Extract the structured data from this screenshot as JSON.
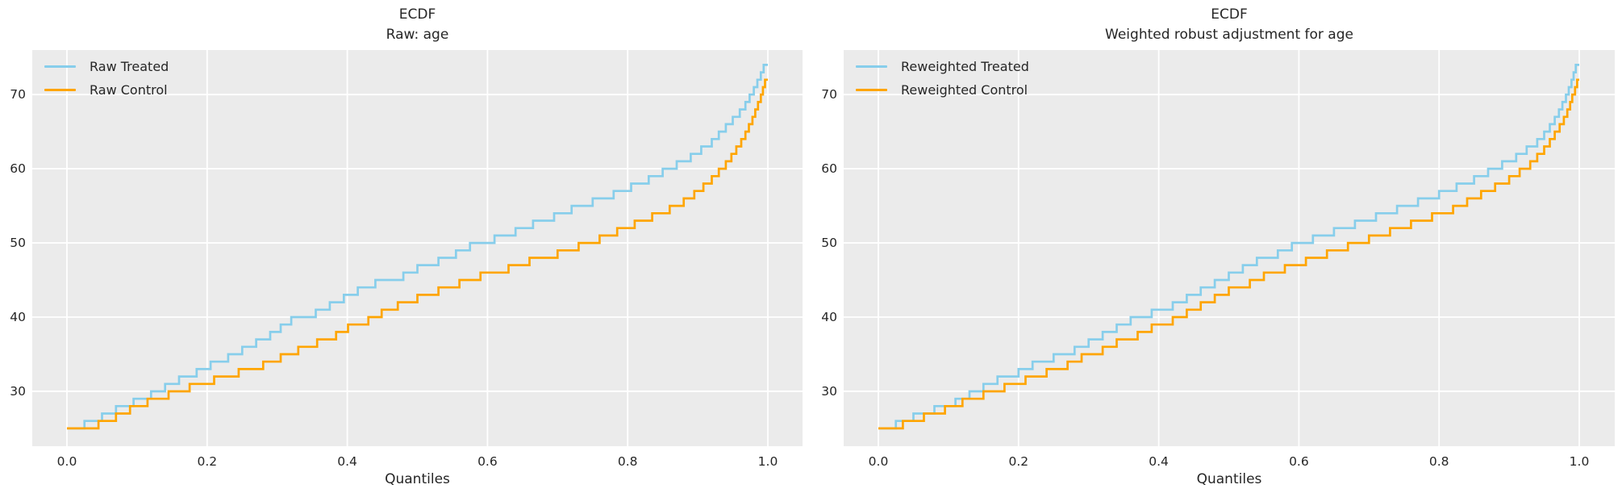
{
  "colors": {
    "figure_background": "#ffffff",
    "axes_background": "#ebebeb",
    "grid": "#ffffff",
    "text": "#262626",
    "treated_line": "#87ceeb",
    "control_line": "#ffa500"
  },
  "chart_data": [
    {
      "type": "line",
      "subtype": "ecdf-quantile-step",
      "title": "ECDF",
      "subtitle": "Raw: age",
      "xlabel": "Quantiles",
      "ylabel": "",
      "xlim": [
        -0.05,
        1.05
      ],
      "ylim": [
        22.6,
        76.0
      ],
      "grid": true,
      "legend_position": "upper left",
      "x_ticks": [
        {
          "label": "0.0",
          "value": 0.0
        },
        {
          "label": "0.2",
          "value": 0.2
        },
        {
          "label": "0.4",
          "value": 0.4
        },
        {
          "label": "0.6",
          "value": 0.6
        },
        {
          "label": "0.8",
          "value": 0.8
        },
        {
          "label": "1.0",
          "value": 1.0
        }
      ],
      "y_ticks": [
        {
          "label": "30",
          "value": 30
        },
        {
          "label": "40",
          "value": 40
        },
        {
          "label": "50",
          "value": 50
        },
        {
          "label": "60",
          "value": 60
        },
        {
          "label": "70",
          "value": 70
        }
      ],
      "series": [
        {
          "name": "Raw Treated",
          "color": "#87ceeb",
          "points": [
            [
              0,
              25
            ],
            [
              0.025,
              26
            ],
            [
              0.05,
              27
            ],
            [
              0.07,
              28
            ],
            [
              0.095,
              29
            ],
            [
              0.12,
              30
            ],
            [
              0.14,
              31
            ],
            [
              0.16,
              32
            ],
            [
              0.185,
              33
            ],
            [
              0.205,
              34
            ],
            [
              0.23,
              35
            ],
            [
              0.25,
              36
            ],
            [
              0.27,
              37
            ],
            [
              0.29,
              38
            ],
            [
              0.305,
              39
            ],
            [
              0.32,
              40
            ],
            [
              0.355,
              41
            ],
            [
              0.375,
              42
            ],
            [
              0.395,
              43
            ],
            [
              0.415,
              44
            ],
            [
              0.44,
              45
            ],
            [
              0.48,
              46
            ],
            [
              0.5,
              47
            ],
            [
              0.53,
              48
            ],
            [
              0.555,
              49
            ],
            [
              0.575,
              50
            ],
            [
              0.61,
              51
            ],
            [
              0.64,
              52
            ],
            [
              0.665,
              53
            ],
            [
              0.695,
              54
            ],
            [
              0.72,
              55
            ],
            [
              0.75,
              56
            ],
            [
              0.78,
              57
            ],
            [
              0.805,
              58
            ],
            [
              0.83,
              59
            ],
            [
              0.85,
              60
            ],
            [
              0.87,
              61
            ],
            [
              0.89,
              62
            ],
            [
              0.905,
              63
            ],
            [
              0.92,
              64
            ],
            [
              0.93,
              65
            ],
            [
              0.94,
              66
            ],
            [
              0.95,
              67
            ],
            [
              0.96,
              68
            ],
            [
              0.968,
              69
            ],
            [
              0.974,
              70
            ],
            [
              0.98,
              71
            ],
            [
              0.985,
              72
            ],
            [
              0.99,
              73
            ],
            [
              0.994,
              74
            ]
          ]
        },
        {
          "name": "Raw Control",
          "color": "#ffa500",
          "points": [
            [
              0,
              25
            ],
            [
              0.045,
              26
            ],
            [
              0.07,
              27
            ],
            [
              0.09,
              28
            ],
            [
              0.115,
              29
            ],
            [
              0.145,
              30
            ],
            [
              0.175,
              31
            ],
            [
              0.21,
              32
            ],
            [
              0.245,
              33
            ],
            [
              0.28,
              34
            ],
            [
              0.305,
              35
            ],
            [
              0.33,
              36
            ],
            [
              0.357,
              37
            ],
            [
              0.384,
              38
            ],
            [
              0.401,
              39
            ],
            [
              0.43,
              40
            ],
            [
              0.449,
              41
            ],
            [
              0.472,
              42
            ],
            [
              0.5,
              43
            ],
            [
              0.53,
              44
            ],
            [
              0.56,
              45
            ],
            [
              0.59,
              46
            ],
            [
              0.63,
              47
            ],
            [
              0.66,
              48
            ],
            [
              0.7,
              49
            ],
            [
              0.73,
              50
            ],
            [
              0.76,
              51
            ],
            [
              0.785,
              52
            ],
            [
              0.81,
              53
            ],
            [
              0.835,
              54
            ],
            [
              0.86,
              55
            ],
            [
              0.88,
              56
            ],
            [
              0.895,
              57
            ],
            [
              0.908,
              58
            ],
            [
              0.92,
              59
            ],
            [
              0.93,
              60
            ],
            [
              0.94,
              61
            ],
            [
              0.948,
              62
            ],
            [
              0.955,
              63
            ],
            [
              0.962,
              64
            ],
            [
              0.968,
              65
            ],
            [
              0.973,
              66
            ],
            [
              0.978,
              67
            ],
            [
              0.982,
              68
            ],
            [
              0.986,
              69
            ],
            [
              0.99,
              70
            ],
            [
              0.993,
              71
            ],
            [
              0.996,
              72
            ]
          ]
        }
      ]
    },
    {
      "type": "line",
      "subtype": "ecdf-quantile-step",
      "title": "ECDF",
      "subtitle": "Weighted robust adjustment for age",
      "xlabel": "Quantiles",
      "ylabel": "",
      "xlim": [
        -0.05,
        1.05
      ],
      "ylim": [
        22.6,
        76.0
      ],
      "grid": true,
      "legend_position": "upper left",
      "x_ticks": [
        {
          "label": "0.0",
          "value": 0.0
        },
        {
          "label": "0.2",
          "value": 0.2
        },
        {
          "label": "0.4",
          "value": 0.4
        },
        {
          "label": "0.6",
          "value": 0.6
        },
        {
          "label": "0.8",
          "value": 0.8
        },
        {
          "label": "1.0",
          "value": 1.0
        }
      ],
      "y_ticks": [
        {
          "label": "30",
          "value": 30
        },
        {
          "label": "40",
          "value": 40
        },
        {
          "label": "50",
          "value": 50
        },
        {
          "label": "60",
          "value": 60
        },
        {
          "label": "70",
          "value": 70
        }
      ],
      "series": [
        {
          "name": "Reweighted Treated",
          "color": "#87ceeb",
          "points": [
            [
              0,
              25
            ],
            [
              0.025,
              26
            ],
            [
              0.05,
              27
            ],
            [
              0.08,
              28
            ],
            [
              0.11,
              29
            ],
            [
              0.13,
              30
            ],
            [
              0.15,
              31
            ],
            [
              0.17,
              32
            ],
            [
              0.2,
              33
            ],
            [
              0.22,
              34
            ],
            [
              0.25,
              35
            ],
            [
              0.28,
              36
            ],
            [
              0.3,
              37
            ],
            [
              0.32,
              38
            ],
            [
              0.34,
              39
            ],
            [
              0.36,
              40
            ],
            [
              0.39,
              41
            ],
            [
              0.42,
              42
            ],
            [
              0.44,
              43
            ],
            [
              0.46,
              44
            ],
            [
              0.48,
              45
            ],
            [
              0.5,
              46
            ],
            [
              0.52,
              47
            ],
            [
              0.54,
              48
            ],
            [
              0.57,
              49
            ],
            [
              0.59,
              50
            ],
            [
              0.62,
              51
            ],
            [
              0.65,
              52
            ],
            [
              0.68,
              53
            ],
            [
              0.71,
              54
            ],
            [
              0.74,
              55
            ],
            [
              0.77,
              56
            ],
            [
              0.8,
              57
            ],
            [
              0.825,
              58
            ],
            [
              0.85,
              59
            ],
            [
              0.87,
              60
            ],
            [
              0.89,
              61
            ],
            [
              0.91,
              62
            ],
            [
              0.925,
              63
            ],
            [
              0.94,
              64
            ],
            [
              0.95,
              65
            ],
            [
              0.958,
              66
            ],
            [
              0.965,
              67
            ],
            [
              0.971,
              68
            ],
            [
              0.976,
              69
            ],
            [
              0.981,
              70
            ],
            [
              0.985,
              71
            ],
            [
              0.989,
              72
            ],
            [
              0.992,
              73
            ],
            [
              0.995,
              74
            ]
          ]
        },
        {
          "name": "Reweighted Control",
          "color": "#ffa500",
          "points": [
            [
              0,
              25
            ],
            [
              0.035,
              26
            ],
            [
              0.065,
              27
            ],
            [
              0.095,
              28
            ],
            [
              0.12,
              29
            ],
            [
              0.15,
              30
            ],
            [
              0.18,
              31
            ],
            [
              0.21,
              32
            ],
            [
              0.24,
              33
            ],
            [
              0.27,
              34
            ],
            [
              0.29,
              35
            ],
            [
              0.32,
              36
            ],
            [
              0.34,
              37
            ],
            [
              0.37,
              38
            ],
            [
              0.39,
              39
            ],
            [
              0.42,
              40
            ],
            [
              0.44,
              41
            ],
            [
              0.46,
              42
            ],
            [
              0.48,
              43
            ],
            [
              0.5,
              44
            ],
            [
              0.53,
              45
            ],
            [
              0.55,
              46
            ],
            [
              0.58,
              47
            ],
            [
              0.61,
              48
            ],
            [
              0.64,
              49
            ],
            [
              0.67,
              50
            ],
            [
              0.7,
              51
            ],
            [
              0.73,
              52
            ],
            [
              0.76,
              53
            ],
            [
              0.79,
              54
            ],
            [
              0.82,
              55
            ],
            [
              0.84,
              56
            ],
            [
              0.86,
              57
            ],
            [
              0.88,
              58
            ],
            [
              0.9,
              59
            ],
            [
              0.915,
              60
            ],
            [
              0.93,
              61
            ],
            [
              0.94,
              62
            ],
            [
              0.95,
              63
            ],
            [
              0.958,
              64
            ],
            [
              0.965,
              65
            ],
            [
              0.972,
              66
            ],
            [
              0.978,
              67
            ],
            [
              0.983,
              68
            ],
            [
              0.987,
              69
            ],
            [
              0.99,
              70
            ],
            [
              0.994,
              71
            ],
            [
              0.997,
              72
            ]
          ]
        }
      ]
    }
  ]
}
